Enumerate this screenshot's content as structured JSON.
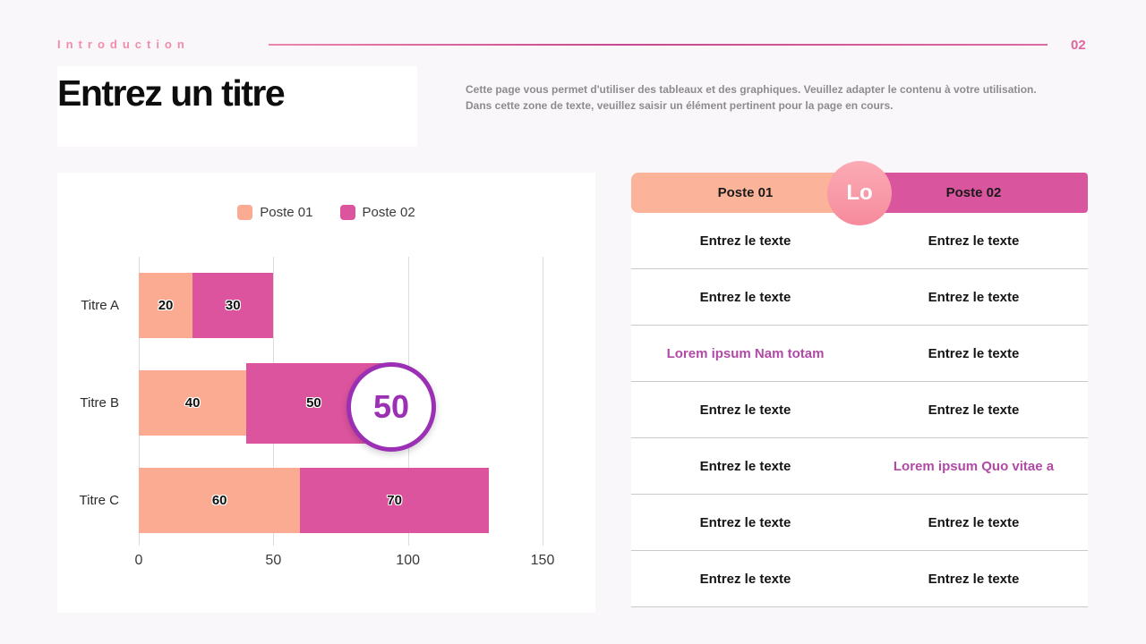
{
  "header": {
    "section_label": "Introduction",
    "page_number": "02"
  },
  "title": "Entrez un titre",
  "description": {
    "line1": "Cette page vous permet d'utiliser des tableaux et des graphiques. Veuillez adapter le contenu à votre utilisation.",
    "line2": "Dans cette zone de texte, veuillez saisir un élément pertinent pour la page en cours."
  },
  "chart_data": {
    "type": "bar",
    "orientation": "horizontal",
    "stacked": true,
    "categories": [
      "Titre A",
      "Titre B",
      "Titre C"
    ],
    "series": [
      {
        "name": "Poste 01",
        "color": "#FBAB92",
        "values": [
          20,
          40,
          60
        ]
      },
      {
        "name": "Poste 02",
        "color": "#DD549E",
        "values": [
          30,
          50,
          70
        ]
      }
    ],
    "xlim": [
      0,
      150
    ],
    "xticks": [
      0,
      50,
      100,
      150
    ],
    "grid": true,
    "legend_position": "top",
    "highlight": {
      "category": "Titre B",
      "series": "Poste 02"
    },
    "badge_value": "50"
  },
  "table": {
    "headers": [
      {
        "label": "Poste 01",
        "color": "#FBB499"
      },
      {
        "label": "Poste 02",
        "color": "#D9559E"
      }
    ],
    "badge_label": "Lo",
    "accent_color": "#B04AA5",
    "rows": [
      [
        {
          "text": "Entrez le texte",
          "accent": false
        },
        {
          "text": "Entrez le texte",
          "accent": false
        }
      ],
      [
        {
          "text": "Entrez le texte",
          "accent": false
        },
        {
          "text": "Entrez le texte",
          "accent": false
        }
      ],
      [
        {
          "text": "Lorem ipsum Nam totam",
          "accent": true
        },
        {
          "text": "Entrez le texte",
          "accent": false
        }
      ],
      [
        {
          "text": "Entrez le texte",
          "accent": false
        },
        {
          "text": "Entrez le texte",
          "accent": false
        }
      ],
      [
        {
          "text": "Entrez le texte",
          "accent": false
        },
        {
          "text": "Lorem ipsum Quo vitae a",
          "accent": true
        }
      ],
      [
        {
          "text": "Entrez le texte",
          "accent": false
        },
        {
          "text": "Entrez le texte",
          "accent": false
        }
      ],
      [
        {
          "text": "Entrez le texte",
          "accent": false
        },
        {
          "text": "Entrez le texte",
          "accent": false
        }
      ]
    ]
  },
  "colors": {
    "accent_pink": "#E0679F",
    "badge_circle_border": "#9B30B5",
    "lo_badge_bg": "#F898A5",
    "background": "#FAF7FA"
  }
}
